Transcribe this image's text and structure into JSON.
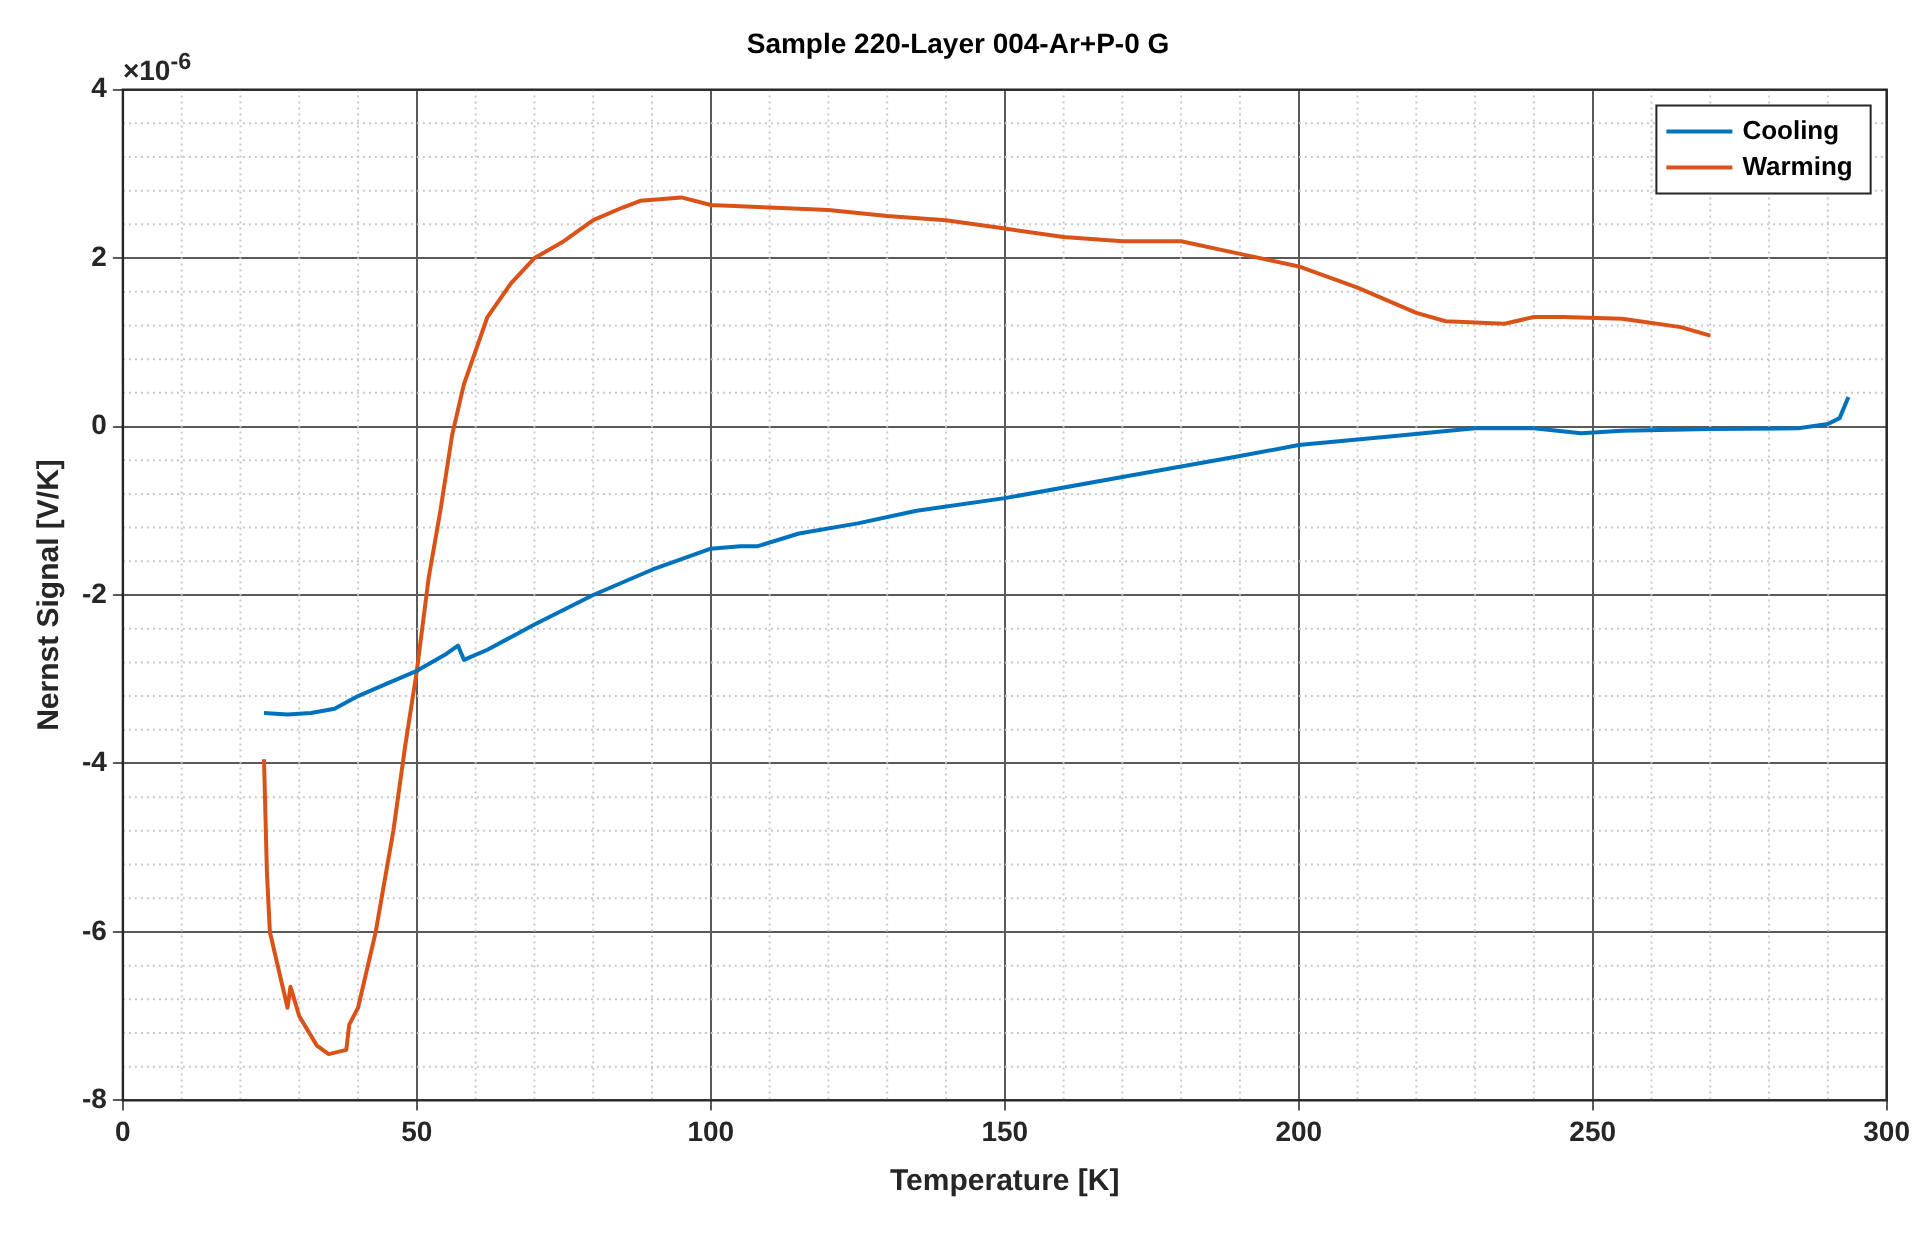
{
  "chart_data": {
    "type": "line",
    "title": "Sample 220-Layer 004-Ar+P-0 G",
    "xlabel": "Temperature [K]",
    "ylabel": "Nernst Signal [V/K]",
    "annotations": [
      "×10$^{-6}$"
    ],
    "xlim": [
      0,
      300
    ],
    "xticks": [
      0,
      50,
      100,
      150,
      200,
      250,
      300
    ],
    "ylim": [
      -8,
      4
    ],
    "yticks": [
      -8,
      -6,
      -4,
      -2,
      0,
      2,
      4
    ],
    "grid": true,
    "legend": "top right",
    "marker": "none",
    "line_style": "solid",
    "series": [
      {
        "name": "Cooling",
        "color": "#0072bd",
        "x": [
          24,
          28,
          32,
          36,
          40,
          45,
          50,
          55,
          57,
          58,
          62,
          70,
          80,
          90,
          100,
          105,
          108,
          115,
          125,
          135,
          150,
          170,
          190,
          200,
          215,
          230,
          240,
          248,
          255,
          270,
          285,
          290,
          292,
          293.5
        ],
        "values": [
          -3.4,
          -3.42,
          -3.4,
          -3.35,
          -3.2,
          -3.05,
          -2.9,
          -2.7,
          -2.6,
          -2.77,
          -2.65,
          -2.35,
          -2.0,
          -1.7,
          -1.45,
          -1.42,
          -1.42,
          -1.27,
          -1.15,
          -1.0,
          -0.85,
          -0.6,
          -0.35,
          -0.22,
          -0.12,
          -0.02,
          -0.02,
          -0.08,
          -0.05,
          -0.03,
          -0.02,
          0.03,
          0.1,
          0.35
        ]
      },
      {
        "name": "Warming",
        "color": "#d95319",
        "x": [
          24,
          24.5,
          25,
          27,
          28,
          28.5,
          30,
          33,
          35,
          38,
          38.5,
          40,
          43,
          46,
          48,
          50,
          52,
          54,
          56,
          58,
          62,
          66,
          70,
          75,
          80,
          85,
          88,
          95,
          100,
          110,
          120,
          130,
          140,
          150,
          160,
          170,
          180,
          190,
          200,
          210,
          220,
          225,
          235,
          240,
          245,
          255,
          265,
          270
        ],
        "values": [
          -3.95,
          -5.3,
          -6.0,
          -6.6,
          -6.9,
          -6.65,
          -7.0,
          -7.35,
          -7.45,
          -7.4,
          -7.1,
          -6.9,
          -6.0,
          -4.8,
          -3.8,
          -2.9,
          -1.8,
          -1.0,
          -0.1,
          0.5,
          1.3,
          1.7,
          2.0,
          2.2,
          2.45,
          2.6,
          2.68,
          2.72,
          2.63,
          2.6,
          2.57,
          2.5,
          2.45,
          2.35,
          2.25,
          2.2,
          2.2,
          2.05,
          1.9,
          1.65,
          1.35,
          1.25,
          1.22,
          1.3,
          1.3,
          1.28,
          1.18,
          1.08
        ]
      }
    ]
  }
}
